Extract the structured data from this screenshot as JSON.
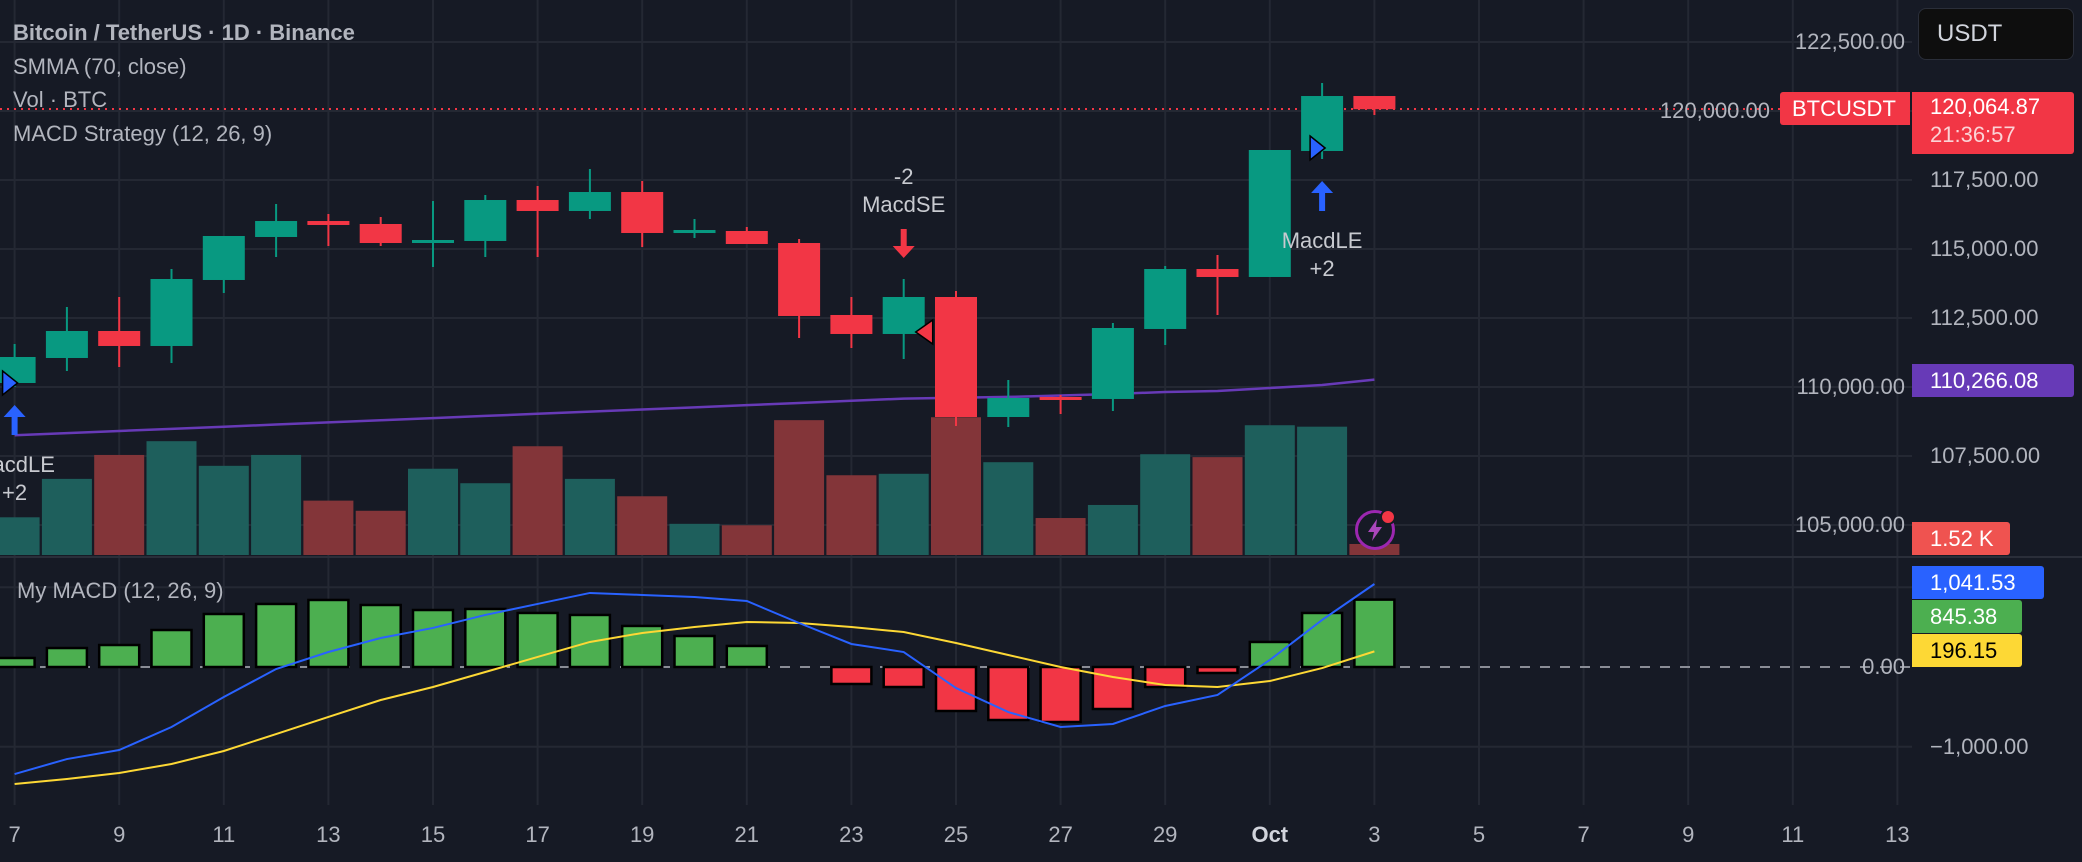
{
  "header": {
    "title": "Bitcoin / TetherUS · 1D · Binance",
    "indicators": [
      "SMMA (70, close)",
      "Vol · BTC",
      "MACD Strategy (12, 26, 9)"
    ],
    "currency_button": "USDT"
  },
  "price_axis": {
    "ticks": [
      "122,500.00",
      "120,000.00",
      "117,500.00",
      "115,000.00",
      "112,500.00",
      "110,000.00",
      "107,500.00",
      "105,000.00"
    ],
    "symbol_tag": "BTCUSDT",
    "last_price": "120,064.87",
    "countdown": "21:36:57",
    "smma_value": "110,266.08",
    "volume_value": "1.52 K"
  },
  "macd_pane": {
    "title": "My MACD (12, 26, 9)",
    "ticks": [
      "0.00",
      "−1,000.00"
    ],
    "macd_value": "1,041.53",
    "histogram_value": "845.38",
    "signal_value": "196.15"
  },
  "time_axis": [
    "7",
    "9",
    "11",
    "13",
    "15",
    "17",
    "19",
    "21",
    "23",
    "25",
    "27",
    "29",
    "Oct",
    "3",
    "5",
    "7",
    "9",
    "11",
    "13"
  ],
  "markers": [
    {
      "date": "Sep 7",
      "type": "long",
      "label": "MacdLE",
      "qty": "+2"
    },
    {
      "date": "Sep 24",
      "type": "short",
      "label": "MacdSE",
      "qty": "-2"
    },
    {
      "date": "Oct 2",
      "type": "long",
      "label": "MacdLE",
      "qty": "+2"
    }
  ],
  "colors": {
    "up": "#089981",
    "down": "#f23645",
    "smma": "#673ab7",
    "vol_up": "#1e5f5c",
    "vol_down": "#833539",
    "macd": "#2962ff",
    "signal": "#fdd835",
    "hist_up": "#4caf50",
    "hist_down": "#f23645",
    "background": "#161a25"
  },
  "chart_data": {
    "type": "candlestick",
    "dates": [
      "Sep 7",
      "Sep 8",
      "Sep 9",
      "Sep 10",
      "Sep 11",
      "Sep 12",
      "Sep 13",
      "Sep 14",
      "Sep 15",
      "Sep 16",
      "Sep 17",
      "Sep 18",
      "Sep 19",
      "Sep 20",
      "Sep 21",
      "Sep 22",
      "Sep 23",
      "Sep 24",
      "Sep 25",
      "Sep 26",
      "Sep 27",
      "Sep 28",
      "Sep 29",
      "Sep 30",
      "Oct 1",
      "Oct 2",
      "Oct 3"
    ],
    "ohlc": [
      [
        110145,
        111558,
        110000,
        111087
      ],
      [
        111051,
        112899,
        110580,
        112029
      ],
      [
        112029,
        113260,
        110725,
        111486
      ],
      [
        111486,
        114275,
        110870,
        113913
      ],
      [
        113877,
        115471,
        113406,
        115471
      ],
      [
        115435,
        116630,
        114710,
        116014
      ],
      [
        116014,
        116268,
        115109,
        115870
      ],
      [
        115906,
        116159,
        115109,
        115217
      ],
      [
        115254,
        116739,
        114348,
        115326
      ],
      [
        115290,
        116957,
        114710,
        116775
      ],
      [
        116775,
        117283,
        114710,
        116377
      ],
      [
        116377,
        117899,
        116087,
        117065
      ],
      [
        117065,
        117464,
        115073,
        115580
      ],
      [
        115616,
        116087,
        115399,
        115688
      ],
      [
        115652,
        115797,
        115181,
        115181
      ],
      [
        115217,
        115362,
        111776,
        112573
      ],
      [
        112609,
        113261,
        111413,
        111921
      ],
      [
        111921,
        113913,
        111015,
        113261
      ],
      [
        113261,
        113478,
        108587,
        108913
      ],
      [
        108913,
        110254,
        108551,
        109602
      ],
      [
        109638,
        109711,
        109022,
        109566
      ],
      [
        109566,
        112319,
        109131,
        112138
      ],
      [
        112102,
        114384,
        111522,
        114275
      ],
      [
        114275,
        114783,
        112609,
        113986
      ],
      [
        113986,
        118587,
        113986,
        118587
      ],
      [
        118551,
        121014,
        118261,
        120543
      ],
      [
        120543,
        120543,
        119855,
        120064.87
      ]
    ],
    "smma": [
      108250,
      108328,
      108406,
      108484,
      108562,
      108640,
      108718,
      108796,
      108874,
      108952,
      109030,
      109108,
      109186,
      109264,
      109342,
      109420,
      109500,
      109580,
      109610,
      109640,
      109690,
      109747,
      109819,
      109855,
      109964,
      110073,
      110266.08
    ],
    "volume_k": [
      5.2,
      10.5,
      13.8,
      15.7,
      12.3,
      13.8,
      7.5,
      6.1,
      11.9,
      9.9,
      15.0,
      10.5,
      8.1,
      4.3,
      4.1,
      18.6,
      11.0,
      11.2,
      19.0,
      12.8,
      5.1,
      6.9,
      13.9,
      13.5,
      17.9,
      17.7,
      1.52
    ],
    "macd": [
      -1343,
      -1155,
      -1042,
      -753,
      -377,
      -25,
      188,
      364,
      490,
      653,
      791,
      929,
      904,
      879,
      828,
      552,
      289,
      188,
      -264,
      -565,
      -753,
      -715,
      -489,
      -351,
      88,
      590,
      1041.53
    ],
    "signal": [
      -1468,
      -1405,
      -1330,
      -1217,
      -1054,
      -841,
      -627,
      -414,
      -251,
      -63,
      126,
      314,
      427,
      502,
      565,
      552,
      502,
      439,
      301,
      151,
      0,
      -125,
      -226,
      -251,
      -176,
      -13,
      196.15
    ],
    "histogram": [
      113,
      238,
      276,
      464,
      665,
      791,
      841,
      778,
      715,
      728,
      678,
      653,
      515,
      389,
      264,
      0,
      -213,
      -251,
      -552,
      -665,
      -690,
      -527,
      -251,
      -75,
      314,
      678,
      845.38
    ],
    "price_range": [
      104000,
      123500
    ],
    "macd_range": [
      -1700,
      1400
    ],
    "grid": true
  }
}
